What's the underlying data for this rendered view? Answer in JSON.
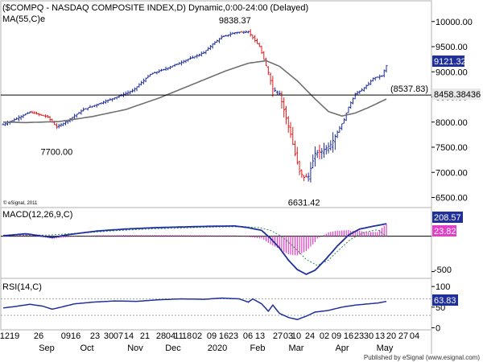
{
  "colors": {
    "up": "#1f2f9c",
    "down": "#e01b1b",
    "ma": "#707070",
    "macd_line": "#1f2f9c",
    "macd_signal": "#2e8b57",
    "macd_hist": "#e040c8",
    "rsi": "#1f2f9c",
    "ref_line": "#000000",
    "last_bg": "#1f2f9c",
    "last_fg": "#ffffff"
  },
  "title": "($COMPQ - NASDAQ COMPOSITE INDEX,D) Dynamic,0:00-24:00 (Delayed)",
  "ma_label": "MA(55,C)e",
  "copyright": "© eSignal, 2011",
  "footer": "Published by eSignal (www.esignal.com)",
  "chart_data": [
    {
      "type": "ohlc",
      "title": "($COMPQ - NASDAQ COMPOSITE INDEX,D) Dynamic,0:00-24:00 (Delayed)",
      "ylim": [
        6300,
        10300
      ],
      "y_ticks": [
        {
          "v": 10000,
          "label": "10000.00"
        },
        {
          "v": 9500,
          "label": "9500.00"
        },
        {
          "v": 9000,
          "label": "9000.00"
        },
        {
          "v": 8500,
          "label": "8500.00"
        },
        {
          "v": 8000,
          "label": "8000.00"
        },
        {
          "v": 7500,
          "label": "7500.00"
        },
        {
          "v": 7000,
          "label": "7000.00"
        },
        {
          "v": 6500,
          "label": "6500.00"
        }
      ],
      "last_close": {
        "v": 9121.32,
        "label": "9121.32"
      },
      "ma_last": {
        "v": 8458.38436,
        "label": "8458.38436"
      },
      "hline": {
        "v": 8537.83,
        "label": "(8537.83)"
      },
      "annotations": [
        {
          "label": "9838.37",
          "v": 9838.37
        },
        {
          "label": "7700.00",
          "v": 7700.0
        },
        {
          "label": "6631.42",
          "v": 6631.42
        }
      ],
      "keypoints": [
        [
          0,
          7950
        ],
        [
          5,
          8050
        ],
        [
          12,
          8200
        ],
        [
          20,
          8100
        ],
        [
          24,
          7900
        ],
        [
          28,
          8000
        ],
        [
          36,
          8250
        ],
        [
          48,
          8450
        ],
        [
          58,
          8620
        ],
        [
          66,
          8950
        ],
        [
          74,
          9080
        ],
        [
          82,
          9230
        ],
        [
          90,
          9380
        ],
        [
          94,
          9550
        ],
        [
          98,
          9690
        ],
        [
          104,
          9780
        ],
        [
          110,
          9800
        ],
        [
          115,
          9500
        ],
        [
          119,
          8990
        ],
        [
          121,
          8660
        ],
        [
          124,
          8570
        ],
        [
          127,
          8080
        ],
        [
          129,
          7760
        ],
        [
          131,
          7360
        ],
        [
          133,
          7020
        ],
        [
          135,
          6900
        ],
        [
          137,
          6920
        ],
        [
          140,
          7380
        ],
        [
          143,
          7420
        ],
        [
          147,
          7550
        ],
        [
          150,
          7800
        ],
        [
          153,
          8050
        ],
        [
          155,
          8300
        ],
        [
          158,
          8560
        ],
        [
          161,
          8640
        ],
        [
          164,
          8760
        ],
        [
          166,
          8870
        ],
        [
          170,
          8920
        ],
        [
          172,
          9121.32
        ]
      ],
      "ma55": [
        [
          0,
          8000
        ],
        [
          10,
          7990
        ],
        [
          25,
          8010
        ],
        [
          40,
          8110
        ],
        [
          55,
          8250
        ],
        [
          70,
          8480
        ],
        [
          85,
          8750
        ],
        [
          100,
          9020
        ],
        [
          110,
          9170
        ],
        [
          118,
          9220
        ],
        [
          124,
          9110
        ],
        [
          132,
          8820
        ],
        [
          140,
          8460
        ],
        [
          146,
          8210
        ],
        [
          152,
          8120
        ],
        [
          158,
          8180
        ],
        [
          164,
          8290
        ],
        [
          172,
          8458.38
        ]
      ],
      "month_axis": {
        "day_labels": [
          "1219",
          "26",
          "0916",
          "23",
          "30",
          "07",
          "14",
          "21",
          "28",
          "04",
          "11",
          "18",
          "02",
          "09",
          "16",
          "23",
          "06",
          "13",
          "27",
          "03",
          "10",
          "24",
          "02",
          "09",
          "16",
          "23",
          "30",
          "13",
          "20",
          "27",
          "04"
        ],
        "months": [
          "Sep",
          "Oct",
          "Nov",
          "Dec",
          "2020",
          "Feb",
          "Mar",
          "Apr",
          "May"
        ]
      }
    },
    {
      "type": "macd",
      "label": "MACD(12,26,9,C)",
      "ylim": [
        -600,
        400
      ],
      "ticks": [
        {
          "v": -500,
          "label": "-500"
        }
      ],
      "macd_last": {
        "v": 208.57,
        "label": "208.57"
      },
      "signal_last": {
        "v": 23.82,
        "label": "23.82"
      },
      "zero_line": 23.82,
      "macd_kp": [
        [
          0,
          30
        ],
        [
          10,
          60
        ],
        [
          22,
          5
        ],
        [
          30,
          50
        ],
        [
          42,
          100
        ],
        [
          55,
          130
        ],
        [
          68,
          150
        ],
        [
          80,
          160
        ],
        [
          92,
          170
        ],
        [
          104,
          175
        ],
        [
          110,
          150
        ],
        [
          116,
          110
        ],
        [
          120,
          -10
        ],
        [
          124,
          -150
        ],
        [
          128,
          -330
        ],
        [
          132,
          -470
        ],
        [
          136,
          -540
        ],
        [
          140,
          -480
        ],
        [
          145,
          -310
        ],
        [
          150,
          -120
        ],
        [
          155,
          40
        ],
        [
          160,
          130
        ],
        [
          166,
          170
        ],
        [
          172,
          208.57
        ]
      ],
      "signal_kp": [
        [
          0,
          40
        ],
        [
          20,
          40
        ],
        [
          35,
          70
        ],
        [
          50,
          105
        ],
        [
          65,
          130
        ],
        [
          80,
          145
        ],
        [
          95,
          160
        ],
        [
          108,
          165
        ],
        [
          115,
          150
        ],
        [
          120,
          110
        ],
        [
          125,
          20
        ],
        [
          130,
          -120
        ],
        [
          136,
          -320
        ],
        [
          141,
          -410
        ],
        [
          146,
          -330
        ],
        [
          151,
          -170
        ],
        [
          156,
          -20
        ],
        [
          162,
          80
        ],
        [
          168,
          120
        ],
        [
          172,
          23.82
        ]
      ]
    },
    {
      "type": "rsi",
      "label": "RSI(14,C)",
      "ylim": [
        -5,
        112
      ],
      "ticks": [
        {
          "v": 100,
          "label": "100"
        },
        {
          "v": 50,
          "label": "50"
        },
        {
          "v": 0,
          "label": "0"
        }
      ],
      "rsi_last": {
        "v": 63.83,
        "label": "63.83"
      },
      "bands": [
        70,
        30
      ],
      "rsi_kp": [
        [
          0,
          48
        ],
        [
          6,
          52
        ],
        [
          12,
          57
        ],
        [
          18,
          52
        ],
        [
          22,
          45
        ],
        [
          26,
          50
        ],
        [
          32,
          58
        ],
        [
          40,
          62
        ],
        [
          50,
          65
        ],
        [
          60,
          64
        ],
        [
          70,
          68
        ],
        [
          80,
          70
        ],
        [
          90,
          69
        ],
        [
          98,
          72
        ],
        [
          106,
          70
        ],
        [
          110,
          62
        ],
        [
          112,
          70
        ],
        [
          116,
          58
        ],
        [
          119,
          40
        ],
        [
          121,
          55
        ],
        [
          124,
          35
        ],
        [
          128,
          25
        ],
        [
          132,
          20
        ],
        [
          136,
          28
        ],
        [
          140,
          38
        ],
        [
          146,
          42
        ],
        [
          152,
          50
        ],
        [
          158,
          55
        ],
        [
          164,
          58
        ],
        [
          168,
          60
        ],
        [
          172,
          63.83
        ]
      ]
    }
  ]
}
